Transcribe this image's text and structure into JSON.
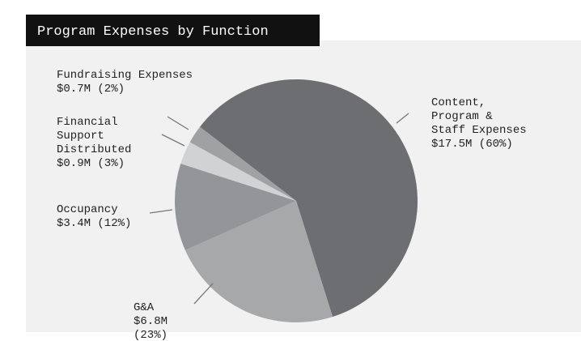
{
  "chart_data": {
    "type": "pie",
    "title": "Program Expenses by Function",
    "categories": [
      "Content, Program & Staff Expenses",
      "G&A",
      "Occupancy",
      "Financial Support Distributed",
      "Fundraising Expenses"
    ],
    "values": [
      17.5,
      6.8,
      3.4,
      0.9,
      0.7
    ],
    "value_labels": [
      "$17.5M (60%)",
      "$6.8M (23%)",
      "$3.4M (12%)",
      "$0.9M (3%)",
      "$0.7M (2%)"
    ],
    "colors": [
      "#6d6e71",
      "#a7a8aa",
      "#939598",
      "#d1d2d4",
      "#a0a1a3"
    ]
  }
}
